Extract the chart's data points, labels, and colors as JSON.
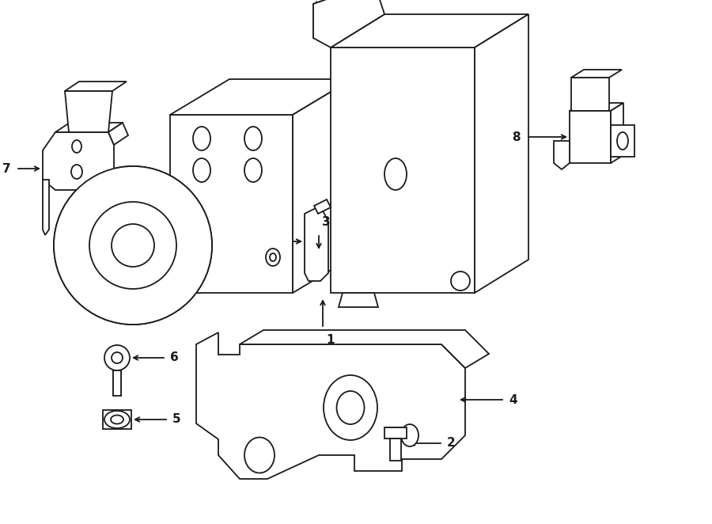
{
  "bg_color": "#ffffff",
  "line_color": "#1a1a1a",
  "fig_width": 9.0,
  "fig_height": 6.62,
  "dpi": 100,
  "lw": 1.3
}
